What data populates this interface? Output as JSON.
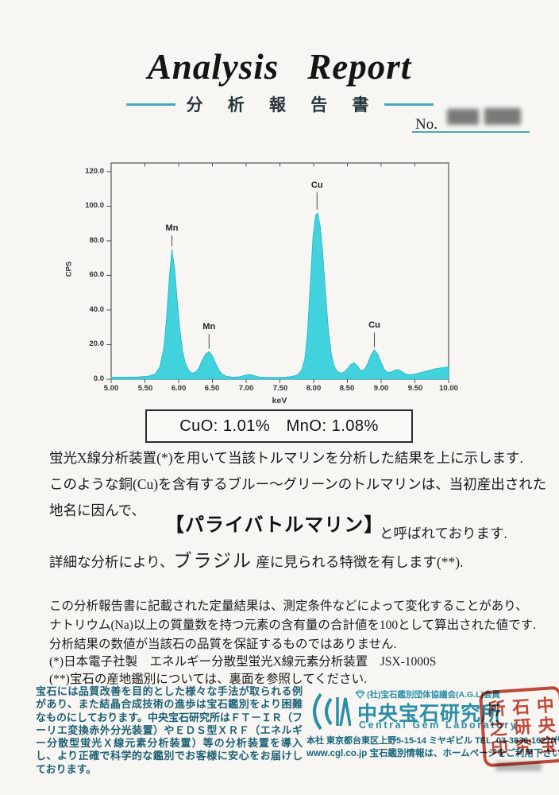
{
  "header": {
    "title_en_1": "Analysis",
    "title_en_2": "Report",
    "title_ja": "分 析 報 告 書",
    "no_label": "No."
  },
  "chart_data": {
    "type": "area",
    "title": "",
    "xlabel": "keV",
    "ylabel": "CPS",
    "xlim": [
      5.0,
      10.0
    ],
    "ylim": [
      0,
      125
    ],
    "grid": false,
    "x_ticks": [
      "5.00",
      "5.50",
      "6.00",
      "6.50",
      "7.00",
      "7.50",
      "8.00",
      "8.50",
      "9.00",
      "9.50",
      "10.00"
    ],
    "y_ticks": [
      "0.0",
      "20.0",
      "40.0",
      "60.0",
      "80.0",
      "100.0",
      "120.0"
    ],
    "series_color": "#41d2de",
    "series_stroke": "#1fb5c6",
    "points": [
      [
        5.0,
        1.2
      ],
      [
        5.2,
        1.2
      ],
      [
        5.4,
        1.3
      ],
      [
        5.55,
        1.8
      ],
      [
        5.65,
        3
      ],
      [
        5.72,
        7
      ],
      [
        5.78,
        18
      ],
      [
        5.82,
        35
      ],
      [
        5.86,
        58
      ],
      [
        5.9,
        75
      ],
      [
        5.94,
        64
      ],
      [
        5.98,
        45
      ],
      [
        6.02,
        28
      ],
      [
        6.06,
        16
      ],
      [
        6.1,
        9
      ],
      [
        6.15,
        5
      ],
      [
        6.2,
        3.5
      ],
      [
        6.25,
        4
      ],
      [
        6.3,
        6.5
      ],
      [
        6.35,
        11
      ],
      [
        6.4,
        14.5
      ],
      [
        6.45,
        16
      ],
      [
        6.5,
        13.5
      ],
      [
        6.55,
        9
      ],
      [
        6.6,
        5
      ],
      [
        6.65,
        2.8
      ],
      [
        6.7,
        1.8
      ],
      [
        6.8,
        1.2
      ],
      [
        6.9,
        1.4
      ],
      [
        6.98,
        2.2
      ],
      [
        7.05,
        2.8
      ],
      [
        7.1,
        2.3
      ],
      [
        7.18,
        1.4
      ],
      [
        7.3,
        1.0
      ],
      [
        7.45,
        1.0
      ],
      [
        7.58,
        1.2
      ],
      [
        7.68,
        1.6
      ],
      [
        7.76,
        2.5
      ],
      [
        7.82,
        5
      ],
      [
        7.87,
        12
      ],
      [
        7.91,
        28
      ],
      [
        7.95,
        55
      ],
      [
        7.99,
        82
      ],
      [
        8.03,
        95
      ],
      [
        8.06,
        96
      ],
      [
        8.1,
        88
      ],
      [
        8.14,
        70
      ],
      [
        8.18,
        48
      ],
      [
        8.22,
        28
      ],
      [
        8.26,
        15
      ],
      [
        8.3,
        8
      ],
      [
        8.35,
        4.5
      ],
      [
        8.4,
        3.5
      ],
      [
        8.45,
        4
      ],
      [
        8.5,
        6
      ],
      [
        8.55,
        8.5
      ],
      [
        8.6,
        9.5
      ],
      [
        8.65,
        7.5
      ],
      [
        8.7,
        5
      ],
      [
        8.75,
        5.5
      ],
      [
        8.8,
        9
      ],
      [
        8.85,
        14
      ],
      [
        8.9,
        17
      ],
      [
        8.95,
        14.5
      ],
      [
        9.0,
        9.5
      ],
      [
        9.05,
        5.5
      ],
      [
        9.1,
        3.8
      ],
      [
        9.15,
        4.2
      ],
      [
        9.2,
        5.2
      ],
      [
        9.25,
        5.6
      ],
      [
        9.3,
        4.6
      ],
      [
        9.35,
        3.2
      ],
      [
        9.42,
        2.6
      ],
      [
        9.5,
        3.0
      ],
      [
        9.6,
        4.0
      ],
      [
        9.7,
        5.0
      ],
      [
        9.8,
        6.0
      ],
      [
        9.9,
        6.6
      ],
      [
        10.0,
        7.2
      ]
    ],
    "peak_labels": [
      {
        "text": "Mn",
        "x": 5.9,
        "line_from": 83,
        "line_to": 77
      },
      {
        "text": "Mn",
        "x": 6.45,
        "line_from": 26,
        "line_to": 17.5
      },
      {
        "text": "Cu",
        "x": 8.05,
        "line_from": 108,
        "line_to": 98
      },
      {
        "text": "Cu",
        "x": 8.9,
        "line_from": 27,
        "line_to": 18.5
      }
    ]
  },
  "result_box": {
    "text": "CuO: 1.01%　MnO: 1.08%"
  },
  "body": {
    "line1": "蛍光X線分析装置(*)を用いて当該トルマリンを分析した結果を上に示します.",
    "line2": "このような銅(Cu)を含有するブルー～グリーンのトルマリンは、当初産出された",
    "line3": "地名に因んで、",
    "highlight": "【パライバトルマリン】",
    "highlight_suffix": "と呼ばれております.",
    "line5_prefix": "詳細な分析により、",
    "line5_origin": "ブラジル",
    "line5_suffix": " 産に見られる特徴を有します(**)."
  },
  "disclaimer": {
    "line1": "この分析報告書に記載された定量結果は、測定条件などによって変化することがあり、",
    "line2": "ナトリウム(Na)以上の質量数を持つ元素の含有量の合計値を100として算出された値です.",
    "line3": "分析結果の数値が当該石の品質を保証するものではありません.",
    "line4": "(*)日本電子社製　エネルギー分散型蛍光X線元素分析装置　JSX-1000S",
    "line5": "(**)宝石の産地鑑別については、裏面を参照してください."
  },
  "footer": {
    "left_paragraph": "宝石には品質改善を目的とした様々な手法が取られる例があり、また結晶合成技術の進歩は宝石鑑別をより困難なものにしております。中央宝石研究所はＦＴ－ＩＲ（フーリエ変換赤外分光装置）やＥＤＳ型ＸＲＦ（エネルギー分散型蛍光Ｘ線元素分析装置）等の分析装置を導入し、より正確で科学的な鑑別でお客様に安心をお届けしております。",
    "member_line": "(社)宝石鑑別団体協議会(A.G.L)会員",
    "org_ja": "中央宝石研究所",
    "org_en": "Central Gem Laboratory",
    "address": "本社 東京都台東区上野5-15-14 ミヤギビル TEL. 03-3836-1627(代)",
    "web_line": "www.cgl.co.jp 宝石鑑別情報は、ホームページをご利用下さい",
    "seal_chars": [
      "中",
      "央",
      "宝",
      "石",
      "研",
      "究",
      "所",
      "之",
      "印"
    ]
  }
}
